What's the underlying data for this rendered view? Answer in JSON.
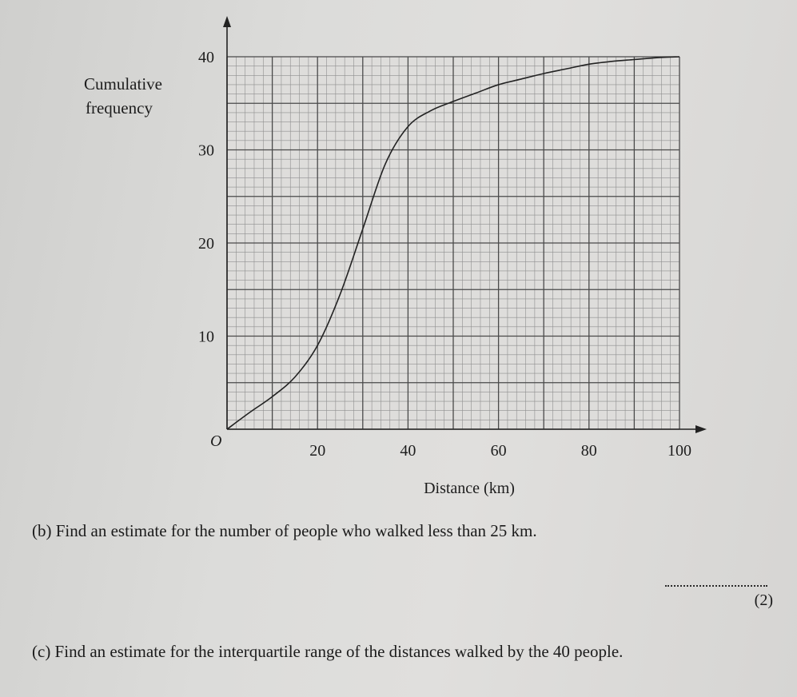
{
  "chart_data": {
    "type": "line",
    "xlabel": "Distance (km)",
    "ylabel": "Cumulative frequency",
    "origin_label": "O",
    "xlim": [
      0,
      100
    ],
    "ylim": [
      0,
      40
    ],
    "x_ticks": [
      20,
      40,
      60,
      80,
      100
    ],
    "y_ticks": [
      10,
      20,
      30,
      40
    ],
    "grid": true,
    "series": [
      {
        "x": [
          0,
          5,
          10,
          15,
          20,
          25,
          30,
          35,
          40,
          45,
          50,
          55,
          60,
          65,
          70,
          75,
          80,
          85,
          90,
          95,
          100
        ],
        "y": [
          0,
          1.8,
          3.5,
          5.6,
          9,
          14.5,
          21.5,
          28.5,
          32.5,
          34.2,
          35.2,
          36.1,
          37,
          37.6,
          38.2,
          38.7,
          39.2,
          39.5,
          39.7,
          39.9,
          40
        ]
      }
    ]
  },
  "questions": {
    "b": "(b) Find an estimate for the number of people who walked less than 25 km.",
    "b_marks": "(2)",
    "c": "(c) Find an estimate for the interquartile range of the distances walked by the 40 people."
  }
}
